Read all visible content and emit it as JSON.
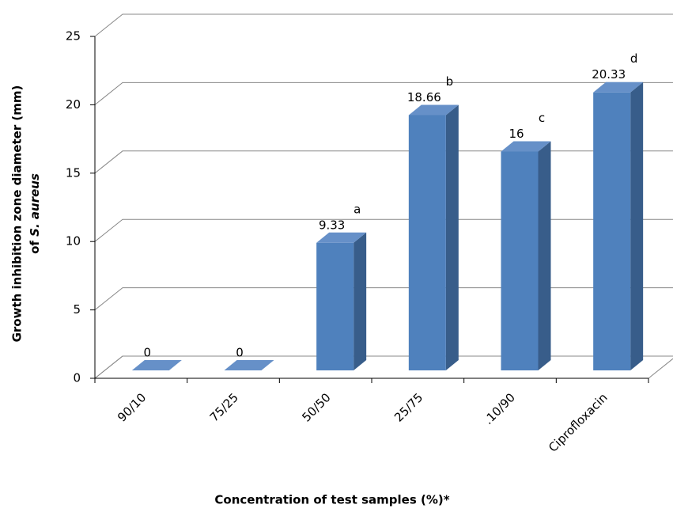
{
  "chart_data": {
    "type": "bar3d",
    "y_label": {
      "text": "Growth inhibition zone diameter  (mm)",
      "species_prefix": "of",
      "species": "S. aureus"
    },
    "x_label": "Concentration of test samples (%)*",
    "categories": [
      "90/10",
      "75/25",
      "50/50",
      "25/75",
      ".10/90",
      "Ciprofloxacin"
    ],
    "values": [
      0,
      0,
      9.33,
      18.66,
      16,
      20.33
    ],
    "annotations": [
      null,
      null,
      "a",
      "b",
      "c",
      "d"
    ],
    "color": "#4f81bd",
    "ylim": [
      0,
      25
    ],
    "yticks": [
      0,
      5,
      10,
      15,
      20,
      25
    ],
    "grid": true
  }
}
